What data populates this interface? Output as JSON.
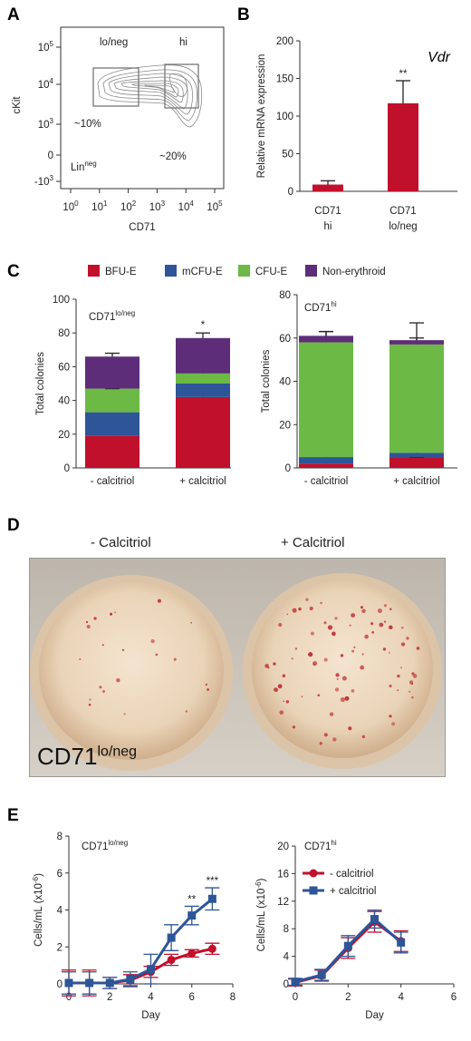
{
  "panels": {
    "A": "A",
    "B": "B",
    "C": "C",
    "D": "D",
    "E": "E"
  },
  "colors": {
    "red": "#c0102c",
    "blue": "#2e5597",
    "green": "#6cb946",
    "purple": "#5e2d79",
    "gate": "#777777"
  },
  "panel_a": {
    "xlabel": "CD71",
    "ylabel": "cKit",
    "xticks": [
      "10^0",
      "10^1",
      "10^2",
      "10^3",
      "10^4",
      "10^5"
    ],
    "yticks": [
      "10^5",
      "10^4",
      "10^3",
      "0",
      "-10^3"
    ],
    "gate_lo_label": "lo/neg",
    "gate_hi_label": "hi",
    "pct_lo": "~10%",
    "pct_hi": "~20%",
    "lin_label": "Lin",
    "lin_sup": "neg"
  },
  "panel_d": {
    "left_title": "- Calcitriol",
    "right_title": "+ Calcitriol",
    "label_main": "CD71",
    "label_sup": "lo/neg"
  },
  "chart_data": [
    {
      "id": "B",
      "type": "bar",
      "title": "Vdr",
      "ylabel": "Relative mRNA expression",
      "ylim": [
        0,
        200
      ],
      "yticks": [
        0,
        50,
        100,
        150,
        200
      ],
      "categories": [
        "CD71 hi",
        "CD71 lo/neg"
      ],
      "category_lines": [
        [
          "CD71",
          "hi"
        ],
        [
          "CD71",
          "lo/neg"
        ]
      ],
      "values": [
        9,
        117
      ],
      "errors": [
        5,
        30
      ],
      "annotations": [
        "",
        "**"
      ],
      "color": "#c0102c"
    },
    {
      "id": "C-left",
      "type": "bar",
      "stacked": true,
      "inset_label": "CD71",
      "inset_sup": "lo/neg",
      "ylabel": "Total colonies",
      "ylim": [
        0,
        100
      ],
      "yticks": [
        0,
        20,
        40,
        60,
        80,
        100
      ],
      "categories": [
        "- calcitriol",
        "+ calcitriol"
      ],
      "series": [
        {
          "name": "BFU-E",
          "color": "#c0102c",
          "values": [
            19,
            42
          ],
          "errors": [
            3,
            3
          ]
        },
        {
          "name": "mCFU-E",
          "color": "#2e5597",
          "values": [
            14,
            8
          ],
          "errors": [
            1,
            3
          ]
        },
        {
          "name": "CFU-E",
          "color": "#6cb946",
          "values": [
            14,
            6
          ],
          "errors": [
            0,
            2
          ]
        },
        {
          "name": "Non-erythroid",
          "color": "#5e2d79",
          "values": [
            19,
            21
          ],
          "errors": [
            2,
            3
          ]
        }
      ],
      "annotations": [
        "",
        "*"
      ],
      "legend": "top"
    },
    {
      "id": "C-right",
      "type": "bar",
      "stacked": true,
      "inset_label": "CD71",
      "inset_sup": "hi",
      "ylabel": "Total colonies",
      "ylim": [
        0,
        80
      ],
      "yticks": [
        0,
        20,
        40,
        60,
        80
      ],
      "categories": [
        "- calcitriol",
        "+ calcitriol"
      ],
      "series": [
        {
          "name": "BFU-E",
          "color": "#c0102c",
          "values": [
            2,
            5
          ],
          "errors": [
            1,
            0
          ]
        },
        {
          "name": "mCFU-E",
          "color": "#2e5597",
          "values": [
            3,
            2
          ],
          "errors": [
            1,
            1
          ]
        },
        {
          "name": "CFU-E",
          "color": "#6cb946",
          "values": [
            53,
            50
          ],
          "errors": [
            5,
            10
          ]
        },
        {
          "name": "Non-erythroid",
          "color": "#5e2d79",
          "values": [
            3,
            2
          ],
          "errors": [
            2,
            1
          ]
        }
      ],
      "annotations": [
        "",
        ""
      ]
    },
    {
      "id": "E-left",
      "type": "line",
      "inset_label": "CD71",
      "inset_sup": "lo/neg",
      "xlabel": "Day",
      "ylabel": "Cells/mL (x10^-6)",
      "xlim": [
        0,
        8
      ],
      "xticks": [
        0,
        2,
        4,
        6,
        8
      ],
      "ylim": [
        0,
        8
      ],
      "yticks": [
        0,
        2,
        4,
        6,
        8
      ],
      "x": [
        0,
        1,
        2,
        3,
        4,
        5,
        6,
        7
      ],
      "series": [
        {
          "name": "- calcitriol",
          "color": "#c0102c",
          "marker": "circle",
          "values": [
            0.05,
            0.05,
            0.05,
            0.2,
            0.65,
            1.3,
            1.65,
            1.9
          ],
          "errors": [
            0.7,
            0.7,
            0.3,
            0.3,
            0.3,
            0.3,
            0.2,
            0.3
          ]
        },
        {
          "name": "+ calcitriol",
          "color": "#2e5597",
          "marker": "square",
          "values": [
            0.05,
            0.05,
            0.05,
            0.25,
            0.8,
            2.5,
            3.7,
            4.6
          ],
          "errors": [
            0.6,
            0.6,
            0.3,
            0.4,
            0.8,
            0.7,
            0.5,
            0.6
          ]
        }
      ],
      "annotations": [
        {
          "x": 6,
          "text": "**"
        },
        {
          "x": 7,
          "text": "***"
        }
      ]
    },
    {
      "id": "E-right",
      "type": "line",
      "inset_label": "CD71",
      "inset_sup": "hi",
      "xlabel": "Day",
      "ylabel": "Cells/mL (x10^-6)",
      "xlim": [
        0,
        6
      ],
      "xticks": [
        0,
        2,
        4,
        6
      ],
      "ylim": [
        0,
        20
      ],
      "yticks": [
        0,
        4,
        8,
        12,
        16,
        20
      ],
      "x": [
        0,
        1,
        2,
        3,
        4
      ],
      "series": [
        {
          "name": "- calcitriol",
          "color": "#c0102c",
          "marker": "circle",
          "values": [
            0.2,
            1.2,
            5.2,
            9.0,
            6.2
          ],
          "errors": [
            0.5,
            0.8,
            1.5,
            1.5,
            1.5
          ]
        },
        {
          "name": "+ calcitriol",
          "color": "#2e5597",
          "marker": "square",
          "values": [
            0.3,
            1.3,
            5.5,
            9.4,
            6.0
          ],
          "errors": [
            0.5,
            0.8,
            1.5,
            1.3,
            1.5
          ]
        }
      ],
      "legend": "top-right"
    }
  ]
}
